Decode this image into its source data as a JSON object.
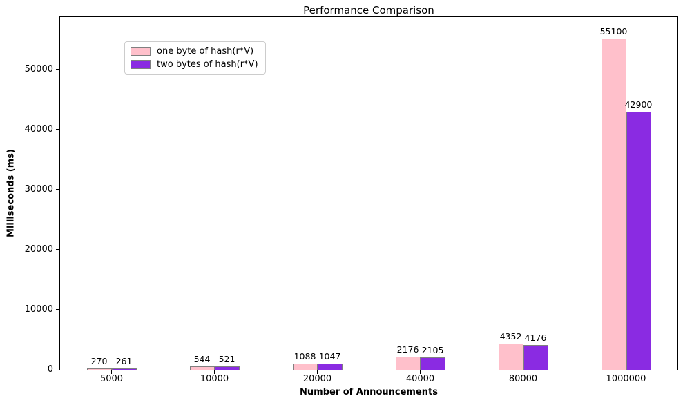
{
  "figure": {
    "background": "#ffffff",
    "axes_edge_color": "#000000"
  },
  "chart_data": {
    "type": "bar",
    "title": "Performance Comparison",
    "xlabel": "Number of Announcements",
    "ylabel": "Milliseconds (ms)",
    "categories": [
      "5000",
      "10000",
      "20000",
      "40000",
      "80000",
      "1000000"
    ],
    "series": [
      {
        "name": "one byte of hash(r*V)",
        "color": "#FFC0CB",
        "edge_color": "#808080",
        "values": [
          270,
          544,
          1088,
          2176,
          4352,
          55100
        ]
      },
      {
        "name": "two bytes of hash(r*V)",
        "color": "#8A2BE2",
        "edge_color": "#808080",
        "values": [
          261,
          521,
          1047,
          2105,
          4176,
          42900
        ]
      }
    ],
    "bar_value_labels": [
      [
        "270",
        "544",
        "1088",
        "2176",
        "4352",
        "55100"
      ],
      [
        "261",
        "521",
        "1047",
        "2105",
        "4176",
        "42900"
      ]
    ],
    "yticks": [
      0,
      10000,
      20000,
      30000,
      40000,
      50000
    ],
    "ylim": [
      0,
      58800
    ],
    "grid": false,
    "legend_position": "upper left"
  }
}
